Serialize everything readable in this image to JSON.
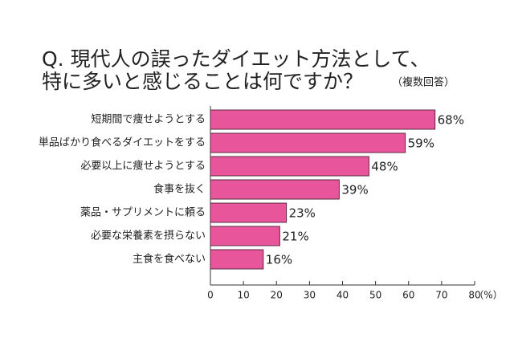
{
  "chart_data": {
    "type": "bar",
    "orientation": "horizontal",
    "title": [
      "Q. 現代人の誤ったダイエット方法として、",
      "特に多いと感じることは何ですか？"
    ],
    "note": "（複数回答）",
    "categories": [
      "短期間で痩せようとする",
      "単品ばかり食べるダイエットをする",
      "必要以上に痩せようとする",
      "食事を抜く",
      "薬品・サプリメントに頼る",
      "必要な栄養素を摂らない",
      "主食を食べない"
    ],
    "values": [
      68,
      59,
      48,
      39,
      23,
      21,
      16
    ],
    "value_labels": [
      "68%",
      "59%",
      "48%",
      "39%",
      "23%",
      "21%",
      "16%"
    ],
    "color": "#e8559a",
    "xlim": [
      0,
      80
    ],
    "xticks": [
      0,
      10,
      20,
      30,
      40,
      50,
      60,
      70,
      80
    ],
    "xlabel": "（%）"
  }
}
